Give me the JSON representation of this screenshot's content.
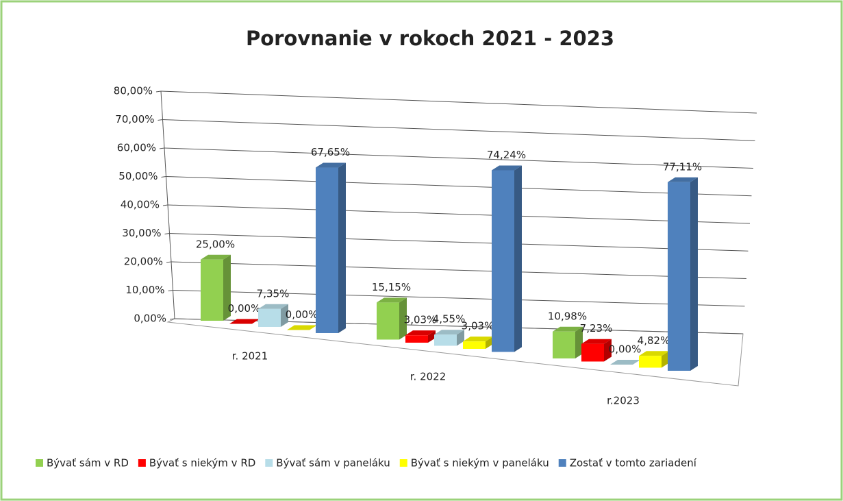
{
  "chart_data": {
    "type": "bar3d",
    "title": "Porovnanie v rokoch 2021 - 2023",
    "categories": [
      "r. 2021",
      "r. 2022",
      "r.2023"
    ],
    "series": [
      {
        "name": "Bývať sám v RD",
        "color": "#92d050",
        "values": [
          25.0,
          15.15,
          10.98
        ],
        "value_labels": [
          "25,00%",
          "15,15%",
          "10,98%"
        ]
      },
      {
        "name": "Bývať s niekým v RD",
        "color": "#ff0000",
        "values": [
          0.0,
          3.03,
          7.23
        ],
        "value_labels": [
          "0,00%",
          "3,03%",
          "7,23%"
        ]
      },
      {
        "name": "Bývať sám v paneláku",
        "color": "#b7dde8",
        "values": [
          7.35,
          4.55,
          0.0
        ],
        "value_labels": [
          "7,35%",
          "4,55%",
          "0,00%"
        ]
      },
      {
        "name": "Bývať s niekým v paneláku",
        "color": "#ffff00",
        "values": [
          0.0,
          3.03,
          4.82
        ],
        "value_labels": [
          "0,00%",
          "3,03%",
          "4,82%"
        ]
      },
      {
        "name": "Zostať v tomto zariadení",
        "color": "#4f81bd",
        "values": [
          67.65,
          74.24,
          77.11
        ],
        "value_labels": [
          "67,65%",
          "74,24%",
          "77,11%"
        ]
      }
    ],
    "ylim": [
      0,
      80
    ],
    "yticks": [
      {
        "value": 0,
        "label": "0,00%"
      },
      {
        "value": 10,
        "label": "10,00%"
      },
      {
        "value": 20,
        "label": "20,00%"
      },
      {
        "value": 30,
        "label": "30,00%"
      },
      {
        "value": 40,
        "label": "40,00%"
      },
      {
        "value": 50,
        "label": "50,00%"
      },
      {
        "value": 60,
        "label": "60,00%"
      },
      {
        "value": 70,
        "label": "70,00%"
      },
      {
        "value": 80,
        "label": "80,00%"
      }
    ],
    "grid": true,
    "legend": "bottom"
  }
}
